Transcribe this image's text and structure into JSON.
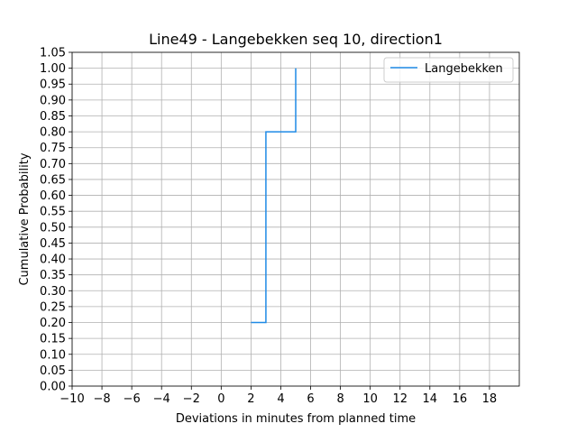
{
  "chart_data": {
    "type": "line",
    "drawstyle": "steps-post",
    "title": "Line49 - Langebekken seq 10, direction1",
    "xlabel": "Deviations in minutes from planned time",
    "ylabel": "Cumulative Probability",
    "xlim": [
      -10,
      20
    ],
    "ylim": [
      0,
      1.05
    ],
    "xticks": [
      -10,
      -8,
      -6,
      -4,
      -2,
      0,
      2,
      4,
      6,
      8,
      10,
      12,
      14,
      16,
      18
    ],
    "yticks": [
      0,
      0.05,
      0.1,
      0.15,
      0.2,
      0.25,
      0.3,
      0.35,
      0.4,
      0.45,
      0.5,
      0.55,
      0.6,
      0.65,
      0.7,
      0.75,
      0.8,
      0.85,
      0.9,
      0.95,
      1.0,
      1.05
    ],
    "grid": true,
    "legend": {
      "placement": "top-right"
    },
    "series": [
      {
        "name": "Langebekken",
        "color": "#1f8ae6",
        "x": [
          2,
          3,
          5
        ],
        "y": [
          0.2,
          0.8,
          1.0
        ]
      }
    ]
  }
}
